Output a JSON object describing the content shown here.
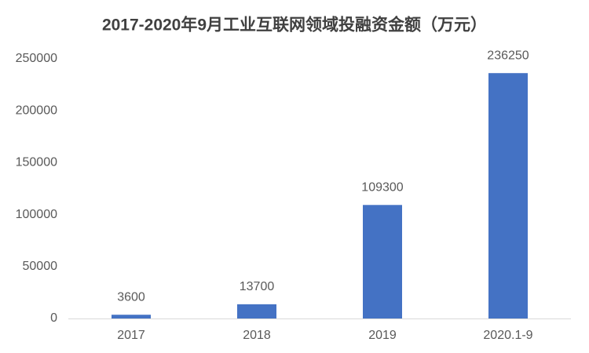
{
  "chart_data": {
    "type": "bar",
    "title": "2017-2020年9月工业互联网领域投融资金额（万元）",
    "categories": [
      "2017",
      "2018",
      "2019",
      "2020.1-9"
    ],
    "values": [
      3600,
      13700,
      109300,
      236250
    ],
    "color": "#4472c4",
    "ylim": [
      0,
      250000
    ],
    "yticks": [
      0,
      50000,
      100000,
      150000,
      200000,
      250000
    ],
    "grid": false
  }
}
